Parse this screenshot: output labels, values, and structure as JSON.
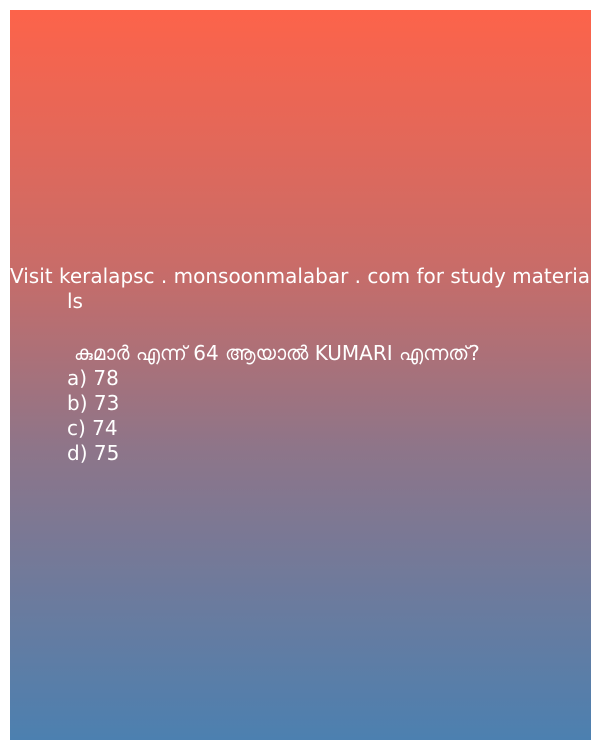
{
  "promo": {
    "line1": "Visit keralapsc . monsoonmalabar . com for study materia",
    "line2": "ls"
  },
  "question": {
    "text": "കുമാർ എന്ന് 64 ആയാൽ KUMARI  എന്നത്?"
  },
  "options": [
    "a) 78",
    "b) 73",
    "c) 74",
    "d) 75"
  ],
  "colors": {
    "gradient_top": "#fd634a",
    "gradient_bottom": "#4c80b0",
    "text": "#ffffff"
  }
}
